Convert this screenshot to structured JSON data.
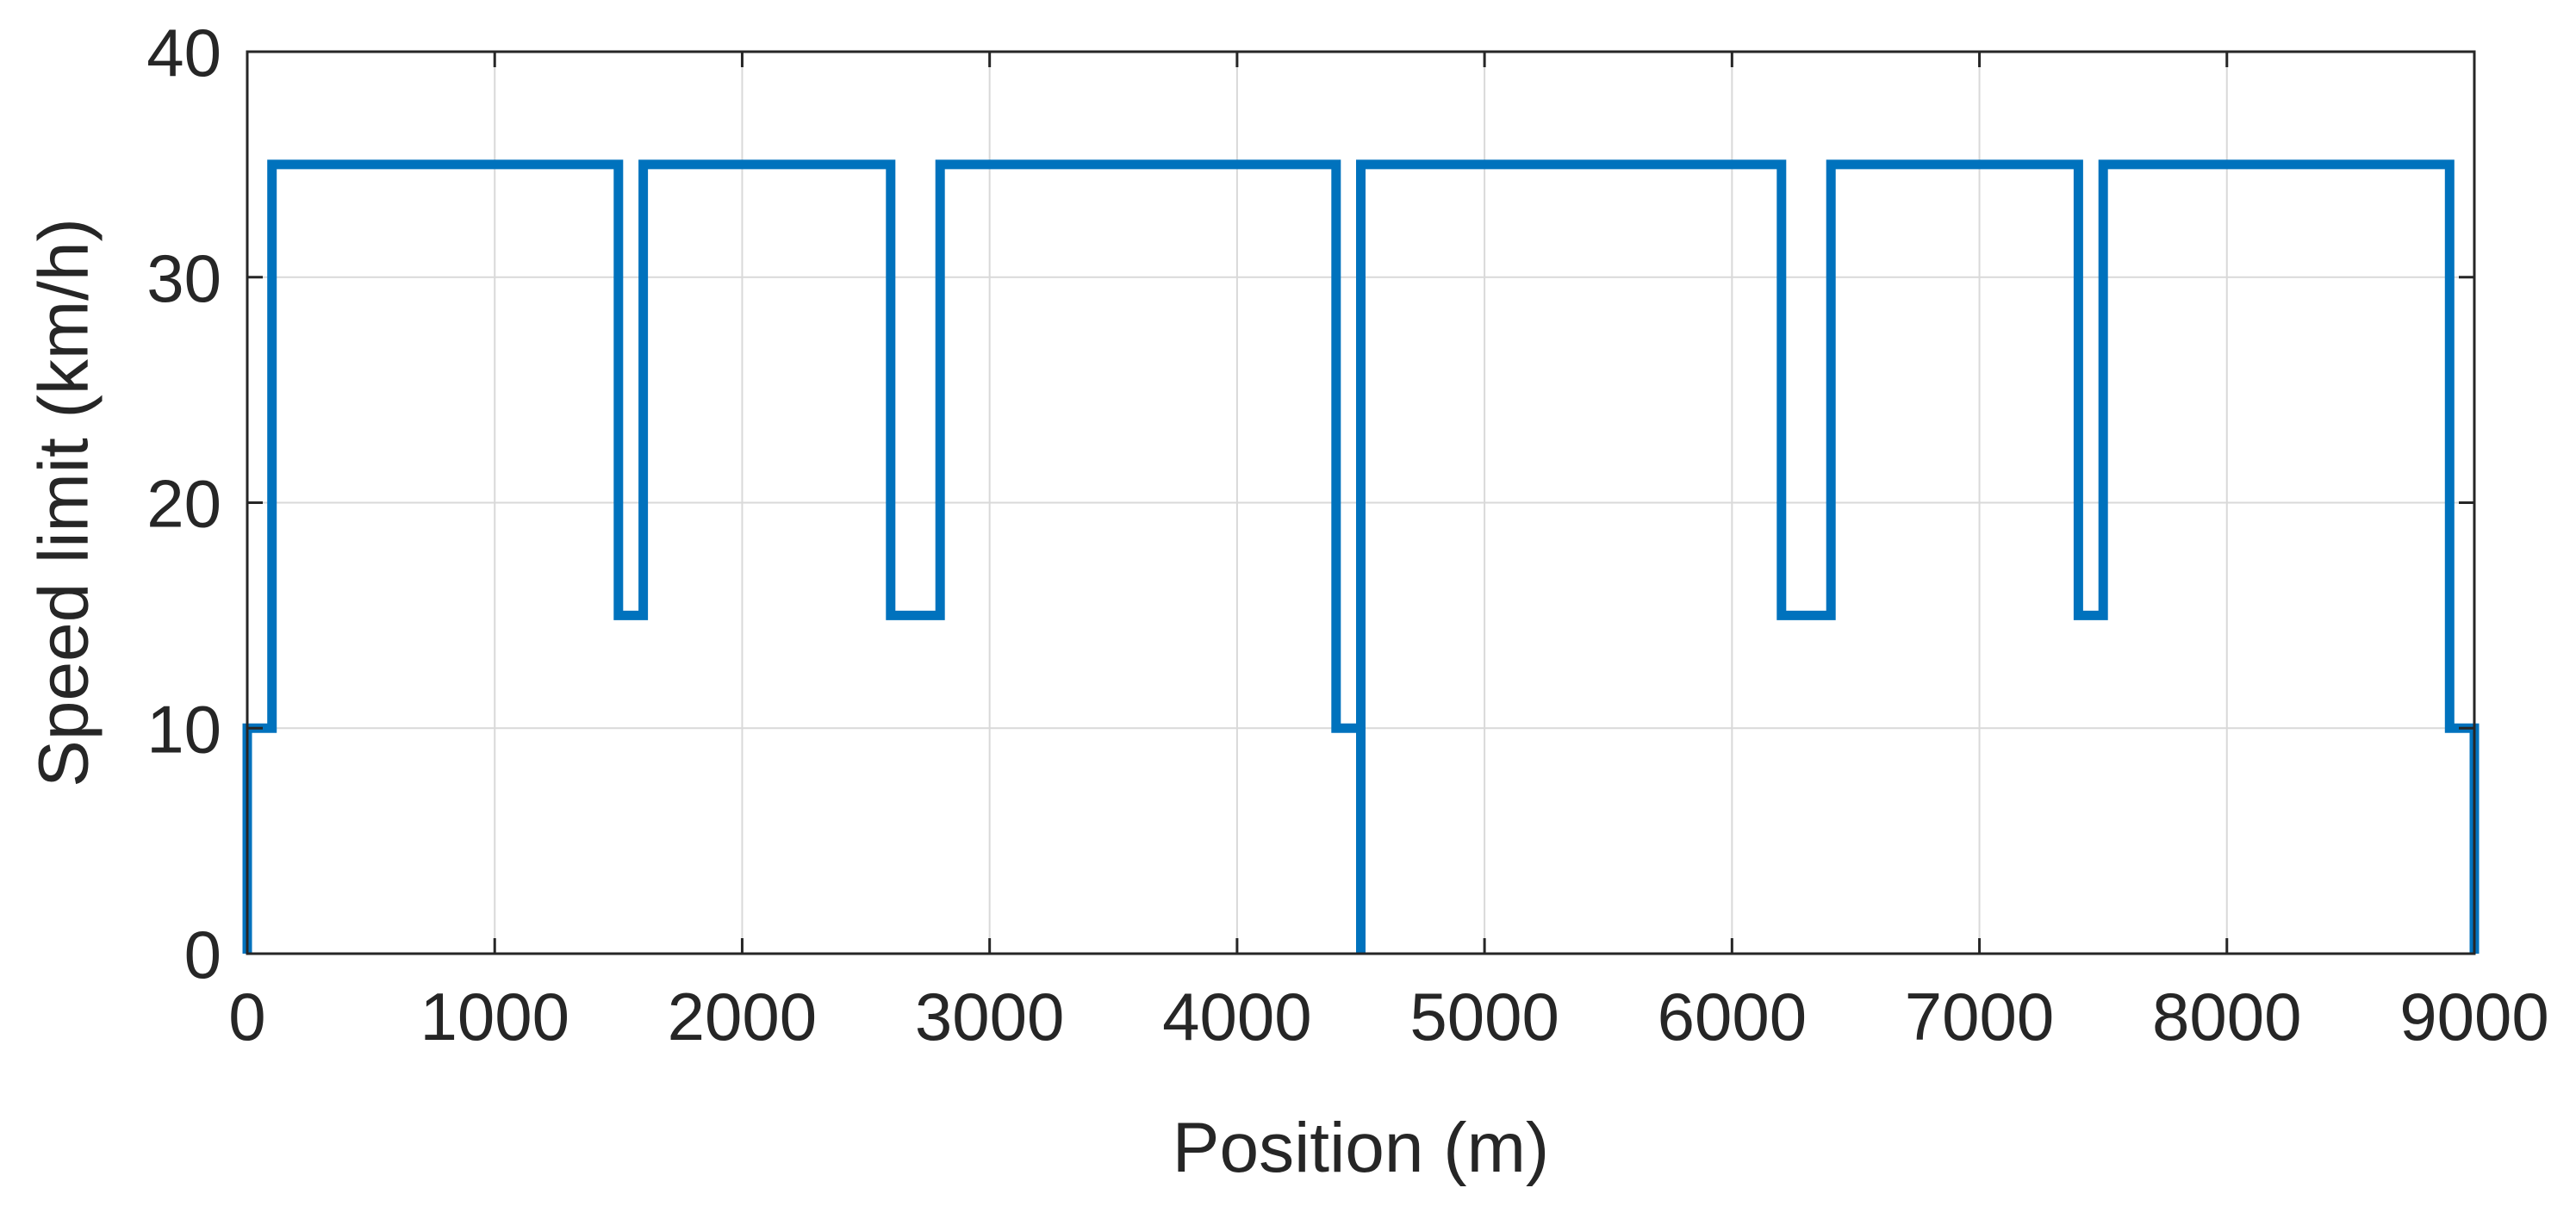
{
  "chart_data": {
    "type": "line",
    "title": "",
    "xlabel": "Position (m)",
    "ylabel": "Speed limit (km/h)",
    "xlim": [
      0,
      9000
    ],
    "ylim": [
      0,
      40
    ],
    "xticks": [
      0,
      1000,
      2000,
      3000,
      4000,
      5000,
      6000,
      7000,
      8000,
      9000
    ],
    "yticks": [
      0,
      10,
      20,
      30,
      40
    ],
    "xtick_labels": [
      "0",
      "1000",
      "2000",
      "3000",
      "4000",
      "5000",
      "6000",
      "7000",
      "8000",
      "9000"
    ],
    "ytick_labels": [
      "0",
      "10",
      "20",
      "30",
      "40"
    ],
    "grid": true,
    "line_style": "step",
    "series": [
      {
        "color": "#0072BD",
        "x": [
          0,
          0,
          100,
          100,
          1500,
          1500,
          1600,
          1600,
          2600,
          2600,
          2800,
          2800,
          4400,
          4400,
          4500,
          4500,
          4500,
          6200,
          6200,
          6400,
          6400,
          7400,
          7400,
          7500,
          7500,
          8900,
          8900,
          9000,
          9000
        ],
        "y": [
          0,
          10,
          10,
          35,
          35,
          15,
          15,
          35,
          35,
          15,
          15,
          35,
          35,
          10,
          10,
          0,
          35,
          35,
          15,
          15,
          35,
          35,
          15,
          15,
          35,
          35,
          10,
          10,
          0
        ]
      }
    ]
  }
}
